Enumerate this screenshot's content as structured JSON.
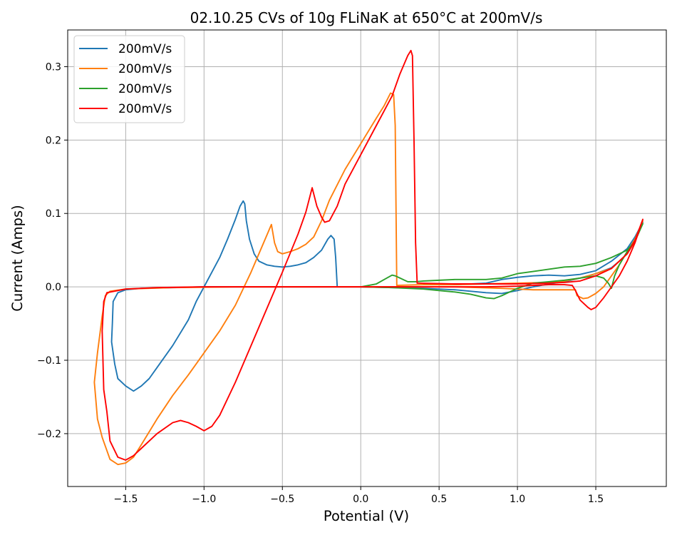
{
  "chart_data": {
    "type": "line",
    "title": "02.10.25 CVs of 10g FLiNaK at 650°C at 200mV/s",
    "xlabel": "Potential (V)",
    "ylabel": "Current (Amps)",
    "xlim": [
      -1.87,
      1.95
    ],
    "ylim": [
      -0.272,
      0.35
    ],
    "xticks": [
      -1.5,
      -1.0,
      -0.5,
      0.0,
      0.5,
      1.0,
      1.5
    ],
    "xtick_labels": [
      "−1.5",
      "−1.0",
      "−0.5",
      "0.0",
      "0.5",
      "1.0",
      "1.5"
    ],
    "yticks": [
      -0.2,
      -0.1,
      0.0,
      0.1,
      0.2,
      0.3
    ],
    "ytick_labels": [
      "−0.2",
      "−0.1",
      "0.0",
      "0.1",
      "0.2",
      "0.3"
    ],
    "grid": true,
    "legend_position": "upper-left",
    "series": [
      {
        "name": "200mV/s",
        "color": "#1f77b4",
        "points": [
          [
            -0.15,
            0.0
          ],
          [
            -0.16,
            0.04
          ],
          [
            -0.17,
            0.065
          ],
          [
            -0.19,
            0.07
          ],
          [
            -0.21,
            0.065
          ],
          [
            -0.25,
            0.05
          ],
          [
            -0.3,
            0.04
          ],
          [
            -0.35,
            0.033
          ],
          [
            -0.4,
            0.03
          ],
          [
            -0.45,
            0.028
          ],
          [
            -0.5,
            0.027
          ],
          [
            -0.55,
            0.028
          ],
          [
            -0.6,
            0.03
          ],
          [
            -0.65,
            0.035
          ],
          [
            -0.68,
            0.045
          ],
          [
            -0.71,
            0.065
          ],
          [
            -0.73,
            0.09
          ],
          [
            -0.74,
            0.113
          ],
          [
            -0.75,
            0.117
          ],
          [
            -0.77,
            0.11
          ],
          [
            -0.8,
            0.092
          ],
          [
            -0.85,
            0.065
          ],
          [
            -0.9,
            0.04
          ],
          [
            -0.95,
            0.02
          ],
          [
            -1.0,
            0.0
          ],
          [
            -1.05,
            -0.02
          ],
          [
            -1.1,
            -0.045
          ],
          [
            -1.2,
            -0.08
          ],
          [
            -1.3,
            -0.11
          ],
          [
            -1.35,
            -0.125
          ],
          [
            -1.4,
            -0.135
          ],
          [
            -1.45,
            -0.142
          ],
          [
            -1.5,
            -0.135
          ],
          [
            -1.55,
            -0.125
          ],
          [
            -1.57,
            -0.105
          ],
          [
            -1.59,
            -0.075
          ],
          [
            -1.585,
            -0.05
          ],
          [
            -1.58,
            -0.02
          ],
          [
            -1.55,
            -0.008
          ],
          [
            -1.5,
            -0.004
          ],
          [
            -1.4,
            -0.002
          ],
          [
            -1.2,
            -0.001
          ],
          [
            -1.0,
            0.0
          ],
          [
            -0.5,
            0.0
          ],
          [
            0.0,
            0.0
          ],
          [
            0.4,
            -0.002
          ],
          [
            0.6,
            -0.004
          ],
          [
            0.8,
            -0.008
          ],
          [
            0.9,
            -0.009
          ],
          [
            1.0,
            -0.005
          ],
          [
            1.1,
            0.0
          ],
          [
            1.2,
            0.004
          ],
          [
            1.3,
            0.007
          ],
          [
            1.4,
            0.012
          ],
          [
            1.5,
            0.018
          ],
          [
            1.6,
            0.026
          ],
          [
            1.65,
            0.035
          ],
          [
            1.7,
            0.045
          ],
          [
            1.75,
            0.062
          ],
          [
            1.8,
            0.088
          ],
          [
            1.75,
            0.068
          ],
          [
            1.7,
            0.052
          ],
          [
            1.6,
            0.035
          ],
          [
            1.5,
            0.022
          ],
          [
            1.4,
            0.017
          ],
          [
            1.3,
            0.015
          ],
          [
            1.2,
            0.016
          ],
          [
            1.1,
            0.015
          ],
          [
            1.0,
            0.013
          ],
          [
            0.9,
            0.01
          ],
          [
            0.8,
            0.005
          ],
          [
            0.6,
            0.003
          ],
          [
            0.4,
            0.003
          ]
        ]
      },
      {
        "name": "200mV/s",
        "color": "#ff7f0e",
        "points": [
          [
            0.23,
            0.002
          ],
          [
            0.22,
            0.22
          ],
          [
            0.21,
            0.262
          ],
          [
            0.19,
            0.264
          ],
          [
            0.15,
            0.247
          ],
          [
            0.1,
            0.23
          ],
          [
            0.0,
            0.195
          ],
          [
            -0.1,
            0.16
          ],
          [
            -0.2,
            0.118
          ],
          [
            -0.25,
            0.09
          ],
          [
            -0.3,
            0.068
          ],
          [
            -0.35,
            0.058
          ],
          [
            -0.4,
            0.052
          ],
          [
            -0.45,
            0.048
          ],
          [
            -0.5,
            0.045
          ],
          [
            -0.53,
            0.048
          ],
          [
            -0.55,
            0.06
          ],
          [
            -0.57,
            0.085
          ],
          [
            -0.59,
            0.075
          ],
          [
            -0.65,
            0.045
          ],
          [
            -0.7,
            0.02
          ],
          [
            -0.8,
            -0.025
          ],
          [
            -0.9,
            -0.06
          ],
          [
            -1.0,
            -0.09
          ],
          [
            -1.1,
            -0.12
          ],
          [
            -1.2,
            -0.148
          ],
          [
            -1.3,
            -0.18
          ],
          [
            -1.4,
            -0.215
          ],
          [
            -1.45,
            -0.232
          ],
          [
            -1.5,
            -0.24
          ],
          [
            -1.55,
            -0.242
          ],
          [
            -1.6,
            -0.235
          ],
          [
            -1.65,
            -0.205
          ],
          [
            -1.68,
            -0.18
          ],
          [
            -1.7,
            -0.13
          ],
          [
            -1.68,
            -0.09
          ],
          [
            -1.65,
            -0.04
          ],
          [
            -1.63,
            -0.012
          ],
          [
            -1.6,
            -0.006
          ],
          [
            -1.5,
            -0.003
          ],
          [
            -1.2,
            -0.001
          ],
          [
            -0.8,
            0.0
          ],
          [
            -0.4,
            0.0
          ],
          [
            0.0,
            0.0
          ],
          [
            0.3,
            0.0
          ],
          [
            0.6,
            0.0
          ],
          [
            0.9,
            -0.002
          ],
          [
            1.1,
            -0.004
          ],
          [
            1.2,
            -0.004
          ],
          [
            1.3,
            -0.004
          ],
          [
            1.37,
            -0.004
          ],
          [
            1.38,
            -0.012
          ],
          [
            1.42,
            -0.016
          ],
          [
            1.45,
            -0.015
          ],
          [
            1.5,
            -0.009
          ],
          [
            1.55,
            0.0
          ],
          [
            1.6,
            0.015
          ],
          [
            1.65,
            0.03
          ],
          [
            1.7,
            0.048
          ],
          [
            1.75,
            0.065
          ],
          [
            1.8,
            0.09
          ],
          [
            1.75,
            0.062
          ],
          [
            1.7,
            0.045
          ],
          [
            1.6,
            0.025
          ],
          [
            1.5,
            0.018
          ],
          [
            1.4,
            0.012
          ],
          [
            1.3,
            0.008
          ],
          [
            1.2,
            0.006
          ],
          [
            1.0,
            0.005
          ],
          [
            0.8,
            0.004
          ],
          [
            0.6,
            0.003
          ],
          [
            0.4,
            0.003
          ],
          [
            0.23,
            0.002
          ]
        ]
      },
      {
        "name": "200mV/s",
        "color": "#2ca02c",
        "points": [
          [
            0.0,
            0.0
          ],
          [
            0.1,
            0.004
          ],
          [
            0.15,
            0.01
          ],
          [
            0.2,
            0.016
          ],
          [
            0.22,
            0.015
          ],
          [
            0.25,
            0.012
          ],
          [
            0.3,
            0.007
          ],
          [
            0.35,
            0.007
          ],
          [
            0.4,
            0.008
          ],
          [
            0.5,
            0.009
          ],
          [
            0.6,
            0.01
          ],
          [
            0.7,
            0.01
          ],
          [
            0.8,
            0.01
          ],
          [
            0.9,
            0.012
          ],
          [
            1.0,
            0.018
          ],
          [
            1.1,
            0.021
          ],
          [
            1.2,
            0.024
          ],
          [
            1.3,
            0.027
          ],
          [
            1.4,
            0.028
          ],
          [
            1.5,
            0.032
          ],
          [
            1.6,
            0.04
          ],
          [
            1.7,
            0.05
          ],
          [
            1.75,
            0.062
          ],
          [
            1.8,
            0.086
          ],
          [
            1.75,
            0.063
          ],
          [
            1.7,
            0.048
          ],
          [
            1.65,
            0.03
          ],
          [
            1.62,
            0.015
          ],
          [
            1.6,
            -0.002
          ],
          [
            1.58,
            0.005
          ],
          [
            1.55,
            0.012
          ],
          [
            1.5,
            0.015
          ],
          [
            1.4,
            0.012
          ],
          [
            1.3,
            0.009
          ],
          [
            1.2,
            0.007
          ],
          [
            1.1,
            0.005
          ],
          [
            1.0,
            -0.002
          ],
          [
            0.9,
            -0.012
          ],
          [
            0.85,
            -0.016
          ],
          [
            0.8,
            -0.015
          ],
          [
            0.7,
            -0.01
          ],
          [
            0.6,
            -0.007
          ],
          [
            0.5,
            -0.005
          ],
          [
            0.4,
            -0.003
          ],
          [
            0.2,
            -0.001
          ],
          [
            0.0,
            0.0
          ]
        ]
      },
      {
        "name": "200mV/s",
        "color": "#ff0000",
        "points": [
          [
            0.36,
            0.005
          ],
          [
            0.35,
            0.06
          ],
          [
            0.34,
            0.2
          ],
          [
            0.33,
            0.315
          ],
          [
            0.32,
            0.322
          ],
          [
            0.3,
            0.315
          ],
          [
            0.25,
            0.29
          ],
          [
            0.2,
            0.26
          ],
          [
            0.1,
            0.22
          ],
          [
            0.0,
            0.18
          ],
          [
            -0.1,
            0.14
          ],
          [
            -0.15,
            0.11
          ],
          [
            -0.2,
            0.09
          ],
          [
            -0.23,
            0.088
          ],
          [
            -0.25,
            0.095
          ],
          [
            -0.28,
            0.11
          ],
          [
            -0.31,
            0.135
          ],
          [
            -0.35,
            0.102
          ],
          [
            -0.4,
            0.072
          ],
          [
            -0.5,
            0.02
          ],
          [
            -0.6,
            -0.03
          ],
          [
            -0.7,
            -0.08
          ],
          [
            -0.8,
            -0.13
          ],
          [
            -0.9,
            -0.175
          ],
          [
            -0.95,
            -0.19
          ],
          [
            -1.0,
            -0.196
          ],
          [
            -1.05,
            -0.19
          ],
          [
            -1.1,
            -0.185
          ],
          [
            -1.15,
            -0.182
          ],
          [
            -1.2,
            -0.185
          ],
          [
            -1.3,
            -0.2
          ],
          [
            -1.4,
            -0.22
          ],
          [
            -1.45,
            -0.23
          ],
          [
            -1.5,
            -0.236
          ],
          [
            -1.55,
            -0.232
          ],
          [
            -1.6,
            -0.21
          ],
          [
            -1.62,
            -0.17
          ],
          [
            -1.64,
            -0.14
          ],
          [
            -1.65,
            -0.06
          ],
          [
            -1.64,
            -0.02
          ],
          [
            -1.62,
            -0.008
          ],
          [
            -1.5,
            -0.003
          ],
          [
            -1.3,
            -0.001
          ],
          [
            -1.0,
            0.0
          ],
          [
            -0.5,
            0.0
          ],
          [
            0.0,
            0.0
          ],
          [
            0.4,
            0.0
          ],
          [
            0.8,
            0.0
          ],
          [
            1.0,
            0.001
          ],
          [
            1.1,
            0.002
          ],
          [
            1.2,
            0.003
          ],
          [
            1.3,
            0.003
          ],
          [
            1.35,
            0.002
          ],
          [
            1.37,
            -0.005
          ],
          [
            1.4,
            -0.018
          ],
          [
            1.45,
            -0.028
          ],
          [
            1.47,
            -0.031
          ],
          [
            1.5,
            -0.028
          ],
          [
            1.55,
            -0.015
          ],
          [
            1.6,
            0.0
          ],
          [
            1.65,
            0.015
          ],
          [
            1.7,
            0.035
          ],
          [
            1.75,
            0.06
          ],
          [
            1.8,
            0.092
          ],
          [
            1.75,
            0.063
          ],
          [
            1.7,
            0.045
          ],
          [
            1.6,
            0.025
          ],
          [
            1.5,
            0.015
          ],
          [
            1.4,
            0.008
          ],
          [
            1.3,
            0.006
          ],
          [
            1.2,
            0.005
          ],
          [
            1.0,
            0.004
          ],
          [
            0.8,
            0.004
          ],
          [
            0.6,
            0.004
          ],
          [
            0.36,
            0.005
          ]
        ]
      }
    ]
  }
}
